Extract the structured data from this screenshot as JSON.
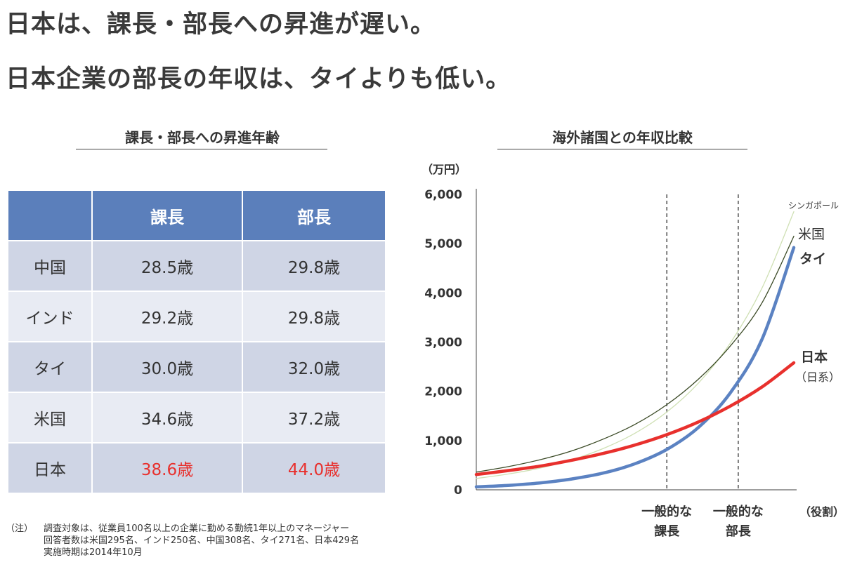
{
  "headline": {
    "line1": "日本は、課長・部長への昇進が遅い。",
    "line2": "日本企業の部長の年収は、タイよりも低い。"
  },
  "table_section": {
    "title": "課長・部長への昇進年齢",
    "columns": [
      "",
      "課長",
      "部長"
    ],
    "rows": [
      {
        "country": "中国",
        "kacho": "28.5歳",
        "bucho": "29.8歳"
      },
      {
        "country": "インド",
        "kacho": "29.2歳",
        "bucho": "29.8歳"
      },
      {
        "country": "タイ",
        "kacho": "30.0歳",
        "bucho": "32.0歳"
      },
      {
        "country": "米国",
        "kacho": "34.6歳",
        "bucho": "37.2歳"
      },
      {
        "country": "日本",
        "kacho": "38.6歳",
        "bucho": "44.0歳"
      }
    ],
    "highlight_color": "#e8302d",
    "header_color": "#5b7fbb"
  },
  "note": {
    "label": "（注）",
    "lines": [
      "調査対象は、従業員100名以上の企業に勤める勤続1年以上のマネージャー",
      "回答者数は米国295名、インド250名、中国308名、タイ271名、日本429名",
      "実施時期は2014年10月"
    ]
  },
  "chart_data": {
    "type": "line",
    "title": "海外諸国との年収比較",
    "ylabel": "（万円）",
    "xlabel": "（役割）",
    "ylim": [
      0,
      6000
    ],
    "yticks": [
      0,
      1000,
      2000,
      3000,
      4000,
      5000,
      6000
    ],
    "ytick_labels": [
      "0",
      "1,000",
      "2,000",
      "3,000",
      "4,000",
      "5,000",
      "6,000"
    ],
    "x": [
      0,
      0.1,
      0.2,
      0.3,
      0.4,
      0.5,
      0.6,
      0.7,
      0.8,
      0.9,
      1.0
    ],
    "markers": [
      {
        "x": 0.6,
        "label_lines": [
          "一般的な",
          "課長"
        ]
      },
      {
        "x": 0.825,
        "label_lines": [
          "一般的な",
          "部長"
        ]
      }
    ],
    "series": [
      {
        "name": "シンガポール",
        "color": "#cfe0b4",
        "width": 1.3,
        "values": [
          230,
          320,
          440,
          610,
          840,
          1150,
          1580,
          2170,
          2980,
          4100,
          5650
        ]
      },
      {
        "name": "米国",
        "color": "#3b4a26",
        "width": 1.3,
        "values": [
          360,
          470,
          610,
          790,
          1030,
          1330,
          1730,
          2250,
          2920,
          3800,
          5150
        ]
      },
      {
        "name": "タイ",
        "color": "#5b82c2",
        "width": 4.5,
        "values": [
          60,
          90,
          140,
          220,
          340,
          530,
          820,
          1270,
          1970,
          3060,
          4920
        ]
      },
      {
        "name": "日本",
        "sublabel": "（日系）",
        "color": "#e8302d",
        "width": 4.5,
        "values": [
          310,
          390,
          480,
          600,
          740,
          910,
          1120,
          1380,
          1700,
          2090,
          2580
        ]
      }
    ],
    "grid": false
  }
}
